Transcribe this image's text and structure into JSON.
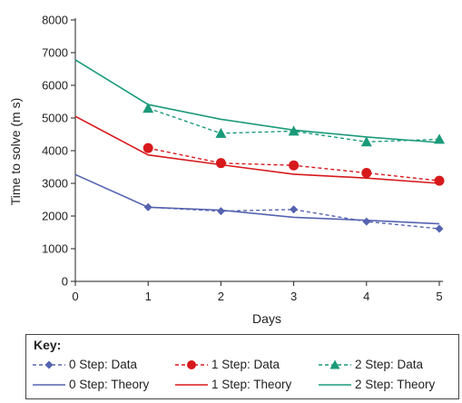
{
  "chart_data": {
    "type": "line",
    "xlabel": "Days",
    "ylabel": "Time to solve (m s)",
    "xlim": [
      0,
      5
    ],
    "ylim": [
      0,
      8000
    ],
    "x_ticks": [
      "0",
      "1",
      "2",
      "3",
      "4",
      "5"
    ],
    "y_ticks": [
      "0",
      "1000",
      "2000",
      "3000",
      "4000",
      "5000",
      "6000",
      "7000",
      "8000"
    ],
    "grid": false,
    "legend_placement": "bottom",
    "series": [
      {
        "name": "0 Step: Data",
        "color": "#5563b0",
        "marker": "diamond",
        "dash": "dashed",
        "x": [
          1,
          2,
          3,
          4,
          5
        ],
        "y": [
          2270,
          2150,
          2200,
          1830,
          1610
        ]
      },
      {
        "name": "1 Step: Data",
        "color": "#d7191c",
        "marker": "circle",
        "dash": "dashed",
        "x": [
          1,
          2,
          3,
          4,
          5
        ],
        "y": [
          4080,
          3620,
          3550,
          3320,
          3080
        ]
      },
      {
        "name": "2 Step: Data",
        "color": "#1a9a7a",
        "marker": "triangle",
        "dash": "dashed",
        "x": [
          1,
          2,
          3,
          4,
          5
        ],
        "y": [
          5300,
          4530,
          4600,
          4270,
          4350
        ]
      },
      {
        "name": "0 Step: Theory",
        "color": "#5563b0",
        "marker": "none",
        "dash": "solid",
        "x": [
          0,
          1,
          2,
          3,
          4,
          5
        ],
        "y": [
          3270,
          2270,
          2180,
          1960,
          1870,
          1760
        ]
      },
      {
        "name": "1 Step: Theory",
        "color": "#d7191c",
        "marker": "none",
        "dash": "solid",
        "x": [
          0,
          1,
          2,
          3,
          4,
          5
        ],
        "y": [
          5050,
          3870,
          3570,
          3280,
          3160,
          3000
        ]
      },
      {
        "name": "2 Step: Theory",
        "color": "#1a9a7a",
        "marker": "none",
        "dash": "solid",
        "x": [
          0,
          1,
          2,
          3,
          4,
          5
        ],
        "y": [
          6780,
          5410,
          4960,
          4630,
          4420,
          4250
        ]
      }
    ]
  },
  "legend": {
    "title": "Key:",
    "items": [
      "0 Step: Data",
      "1 Step: Data",
      "2 Step: Data",
      "0 Step: Theory",
      "1 Step: Theory",
      "2 Step: Theory"
    ]
  }
}
